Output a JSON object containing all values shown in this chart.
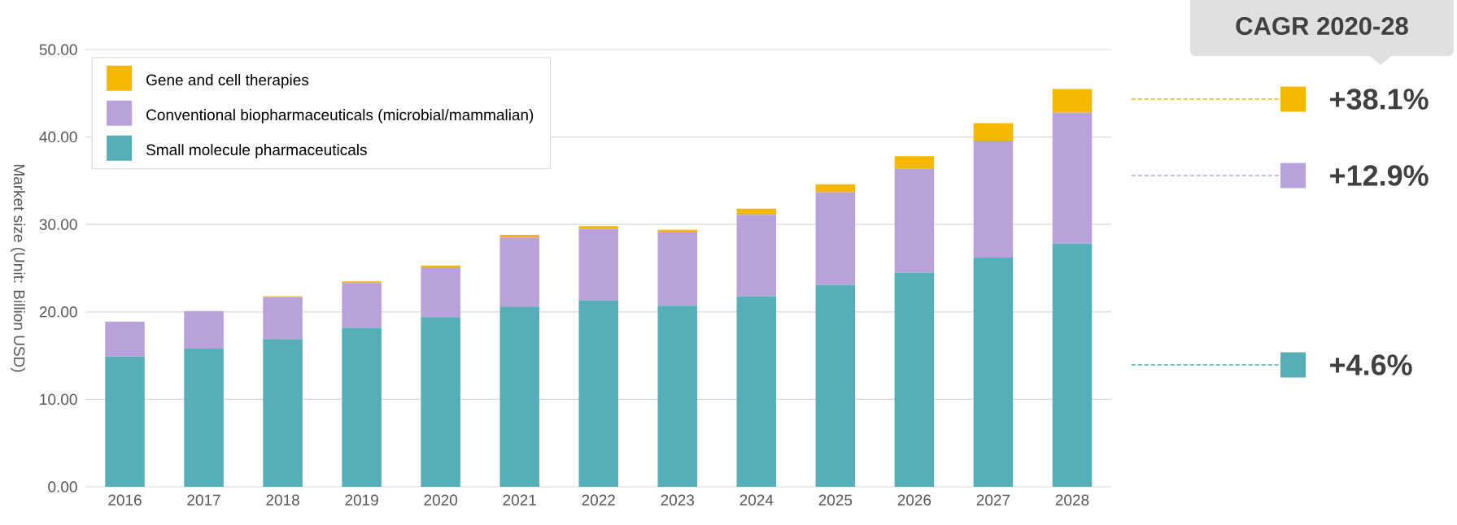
{
  "chart_data": {
    "type": "bar",
    "stacked": true,
    "categories": [
      "2016",
      "2017",
      "2018",
      "2019",
      "2020",
      "2021",
      "2022",
      "2023",
      "2024",
      "2025",
      "2026",
      "2027",
      "2028"
    ],
    "series": [
      {
        "name": "Small molecule pharmaceuticals",
        "color": "#55aeb8",
        "values": [
          14.9,
          15.8,
          16.9,
          18.2,
          19.4,
          20.6,
          21.3,
          20.7,
          21.8,
          23.1,
          24.5,
          26.2,
          27.8
        ]
      },
      {
        "name": "Conventional biopharmaceuticals (microbial/mammalian)",
        "color": "#b9a1da",
        "values": [
          4.0,
          4.3,
          4.8,
          5.1,
          5.7,
          7.9,
          8.2,
          8.4,
          9.3,
          10.6,
          11.9,
          13.4,
          15.0
        ]
      },
      {
        "name": "Gene and cell therapies",
        "color": "#f5b800",
        "values": [
          null,
          null,
          0.1,
          0.2,
          0.2,
          0.3,
          0.3,
          0.3,
          0.7,
          0.9,
          1.4,
          2.0,
          2.7
        ]
      }
    ],
    "ylabel": "Market size (Unit: Billion USD)",
    "ylim": [
      0,
      50
    ],
    "yticks": [
      {
        "value": 0,
        "label": "0.00"
      },
      {
        "value": 10,
        "label": "10.00"
      },
      {
        "value": 20,
        "label": "20.00"
      },
      {
        "value": 30,
        "label": "30.00"
      },
      {
        "value": 40,
        "label": "40.00"
      },
      {
        "value": 50,
        "label": "50.00"
      }
    ],
    "grid": "y",
    "legend": "top left",
    "annotations": [
      "CAGR 2020-28",
      "+38.1%",
      "+12.9%",
      "+4.6%"
    ]
  }
}
